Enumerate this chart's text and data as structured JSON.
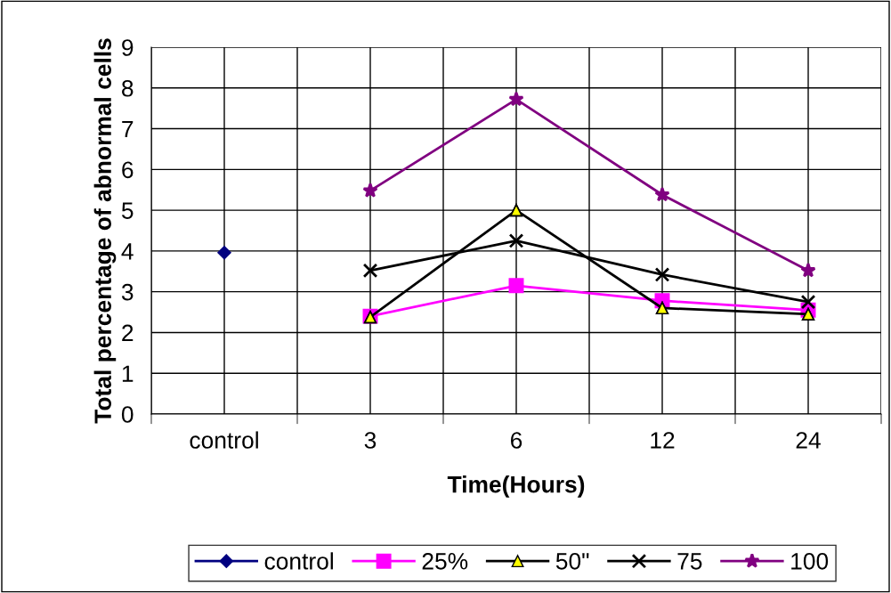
{
  "chart_data": {
    "type": "line",
    "xlabel": "Time(Hours)",
    "ylabel": "Total percentage of abnormal cells",
    "categories": [
      "control",
      "3",
      "6",
      "12",
      "24"
    ],
    "series": [
      {
        "name": "control",
        "color": "#000080",
        "marker": "diamond",
        "values": [
          3.96,
          null,
          null,
          null,
          null
        ]
      },
      {
        "name": "25%",
        "color": "#ff00ff",
        "marker": "square",
        "values": [
          null,
          2.4,
          3.15,
          2.78,
          2.55
        ]
      },
      {
        "name": "50\"",
        "color": "#000000",
        "marker": "triangle",
        "colors": [
          null,
          "#ffff00",
          "#ffff00",
          "#ffff00",
          "#ffff00"
        ],
        "values": [
          null,
          2.38,
          5.0,
          2.6,
          2.45
        ]
      },
      {
        "name": "75",
        "color": "#000000",
        "marker": "cross",
        "values": [
          null,
          3.52,
          4.25,
          3.42,
          2.75
        ]
      },
      {
        "name": "100",
        "color": "#800080",
        "marker": "star",
        "values": [
          null,
          5.48,
          7.72,
          5.38,
          3.52
        ]
      }
    ],
    "ylim": [
      0,
      9
    ],
    "yticks": [
      0,
      1,
      2,
      3,
      4,
      5,
      6,
      7,
      8,
      9
    ],
    "grid": true,
    "legend": "bottom"
  }
}
